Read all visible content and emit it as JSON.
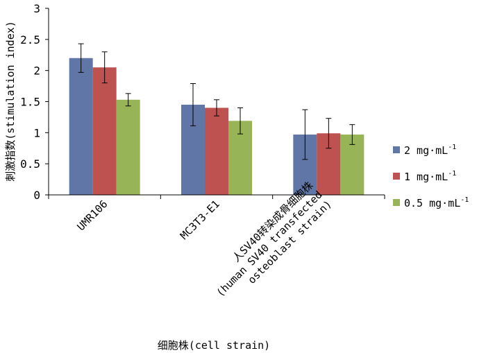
{
  "chart_data": {
    "type": "bar",
    "title": "",
    "ylabel": "刺激指数(stimulation index)",
    "xlabel": "细胞株(cell strain)",
    "ylim": [
      0,
      3
    ],
    "yticks": [
      "0",
      "0.5",
      "1",
      "1.5",
      "2",
      "2.5",
      "3"
    ],
    "grid": false,
    "legend_position": "right",
    "categories": [
      [
        "UMR106"
      ],
      [
        "MC3T3-E1"
      ],
      [
        "人SV40转染成骨细胞株",
        "(human SV40 transfected",
        "osteoblast strain)"
      ]
    ],
    "series": [
      {
        "name_main": "2 mg·mL",
        "name_sup": "-1",
        "color": "#6076A6",
        "values": [
          2.2,
          1.45,
          0.97
        ],
        "errors": [
          0.23,
          0.34,
          0.4
        ]
      },
      {
        "name_main": "1 mg·mL",
        "name_sup": "-1",
        "color": "#BE5250",
        "values": [
          2.05,
          1.4,
          0.99
        ],
        "errors": [
          0.25,
          0.13,
          0.24
        ]
      },
      {
        "name_main": "0.5 mg·mL",
        "name_sup": "-1",
        "color": "#97B456",
        "values": [
          1.53,
          1.19,
          0.97
        ],
        "errors": [
          0.1,
          0.21,
          0.16
        ]
      }
    ]
  }
}
